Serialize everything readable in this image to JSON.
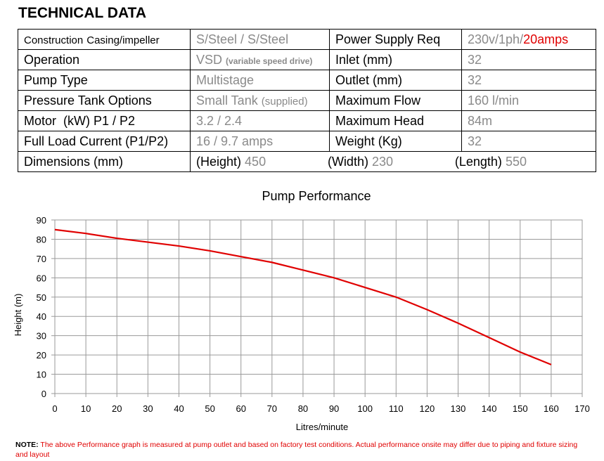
{
  "header": {
    "title": "TECHNICAL DATA"
  },
  "specs": {
    "construction_label": "Construction",
    "construction_sub": "Casing/impeller",
    "construction_value": "S/Steel / S/Steel",
    "power_label": "Power Supply Req",
    "power_value": "230v/1ph/",
    "power_value_red": "20amps",
    "operation_label": "Operation",
    "operation_value": "VSD",
    "operation_value_note": "(variable speed drive)",
    "inlet_label": "Inlet (mm)",
    "inlet_value": "32",
    "pump_type_label": "Pump Type",
    "pump_type_value": "Multistage",
    "outlet_label": "Outlet (mm)",
    "outlet_value": "32",
    "pressure_tank_label": "Pressure Tank Options",
    "pressure_tank_value": "Small Tank",
    "pressure_tank_note": "(supplied)",
    "max_flow_label": "Maximum Flow",
    "max_flow_value": "160 l/min",
    "motor_label": "Motor  (kW) P1 / P2",
    "motor_value": "3.2 / 2.4",
    "max_head_label": "Maximum Head",
    "max_head_value": "84m",
    "flc_label": "Full Load Current (P1/P2)",
    "flc_value": "16 / 9.7 amps",
    "weight_label": "Weight (Kg)",
    "weight_value": "32",
    "dimensions_label": "Dimensions (mm)",
    "height_label": "(Height)",
    "height_value": "450",
    "width_label": "(Width)",
    "width_value": "230",
    "length_label": "(Length)",
    "length_value": "550"
  },
  "chart_data": {
    "type": "line",
    "title": "Pump Performance",
    "xlabel": "Litres/minute",
    "ylabel": "Height (m)",
    "xlim": [
      0,
      170
    ],
    "ylim": [
      0,
      90
    ],
    "x_ticks": [
      0,
      10,
      20,
      30,
      40,
      50,
      60,
      70,
      80,
      90,
      100,
      110,
      120,
      130,
      140,
      150,
      160,
      170
    ],
    "y_ticks": [
      0,
      10,
      20,
      30,
      40,
      50,
      60,
      70,
      80,
      90
    ],
    "grid": true,
    "line_color": "#e00000",
    "series": [
      {
        "x": [
          0,
          10,
          20,
          30,
          40,
          50,
          60,
          70,
          80,
          90,
          100,
          110,
          120,
          130,
          140,
          150,
          160
        ],
        "y": [
          85,
          83,
          80.5,
          78.5,
          76.5,
          74,
          71,
          68,
          64,
          60,
          55,
          50,
          43.5,
          36.5,
          29,
          21.5,
          15
        ]
      }
    ]
  },
  "note": {
    "label": "NOTE:",
    "text": " The above Performance graph is measured at pump outlet and based on factory test conditions. Actual performance onsite may differ due to piping and fixture sizing and layout"
  }
}
